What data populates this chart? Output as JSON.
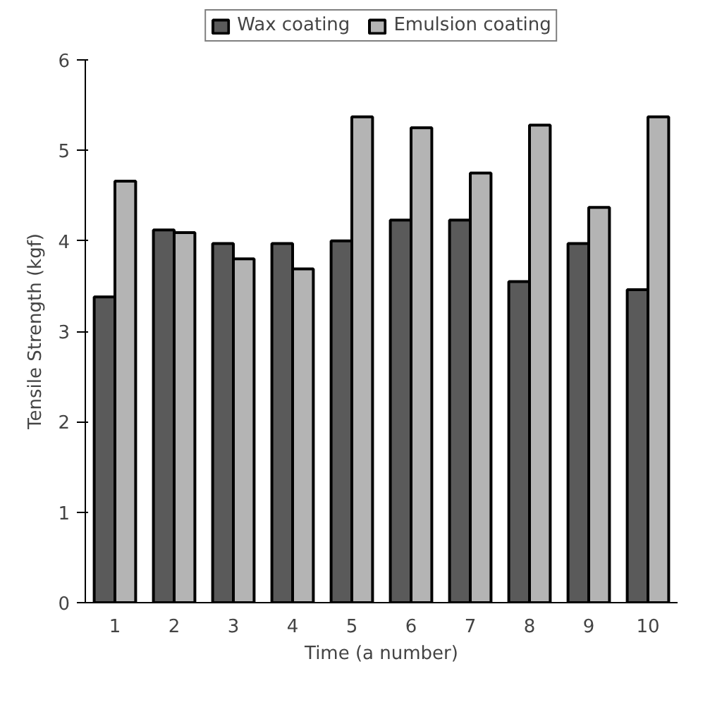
{
  "chart_data": {
    "type": "bar",
    "xlabel": "Time (a number)",
    "ylabel": "Tensile Strength (kgf)",
    "categories": [
      "1",
      "2",
      "3",
      "4",
      "5",
      "6",
      "7",
      "8",
      "9",
      "10"
    ],
    "series": [
      {
        "name": "Wax coating",
        "color": "#5a5a5a",
        "values": [
          3.38,
          4.12,
          3.97,
          3.97,
          4.0,
          4.23,
          4.23,
          3.55,
          3.97,
          3.46
        ]
      },
      {
        "name": "Emulsion coating",
        "color": "#b4b4b4",
        "values": [
          4.66,
          4.09,
          3.8,
          3.69,
          5.37,
          5.25,
          4.75,
          5.28,
          4.37,
          5.37
        ]
      }
    ],
    "ylim": [
      0,
      6
    ],
    "yticks": [
      0,
      1,
      2,
      3,
      4,
      5,
      6
    ],
    "grid": false,
    "legend": "top"
  }
}
